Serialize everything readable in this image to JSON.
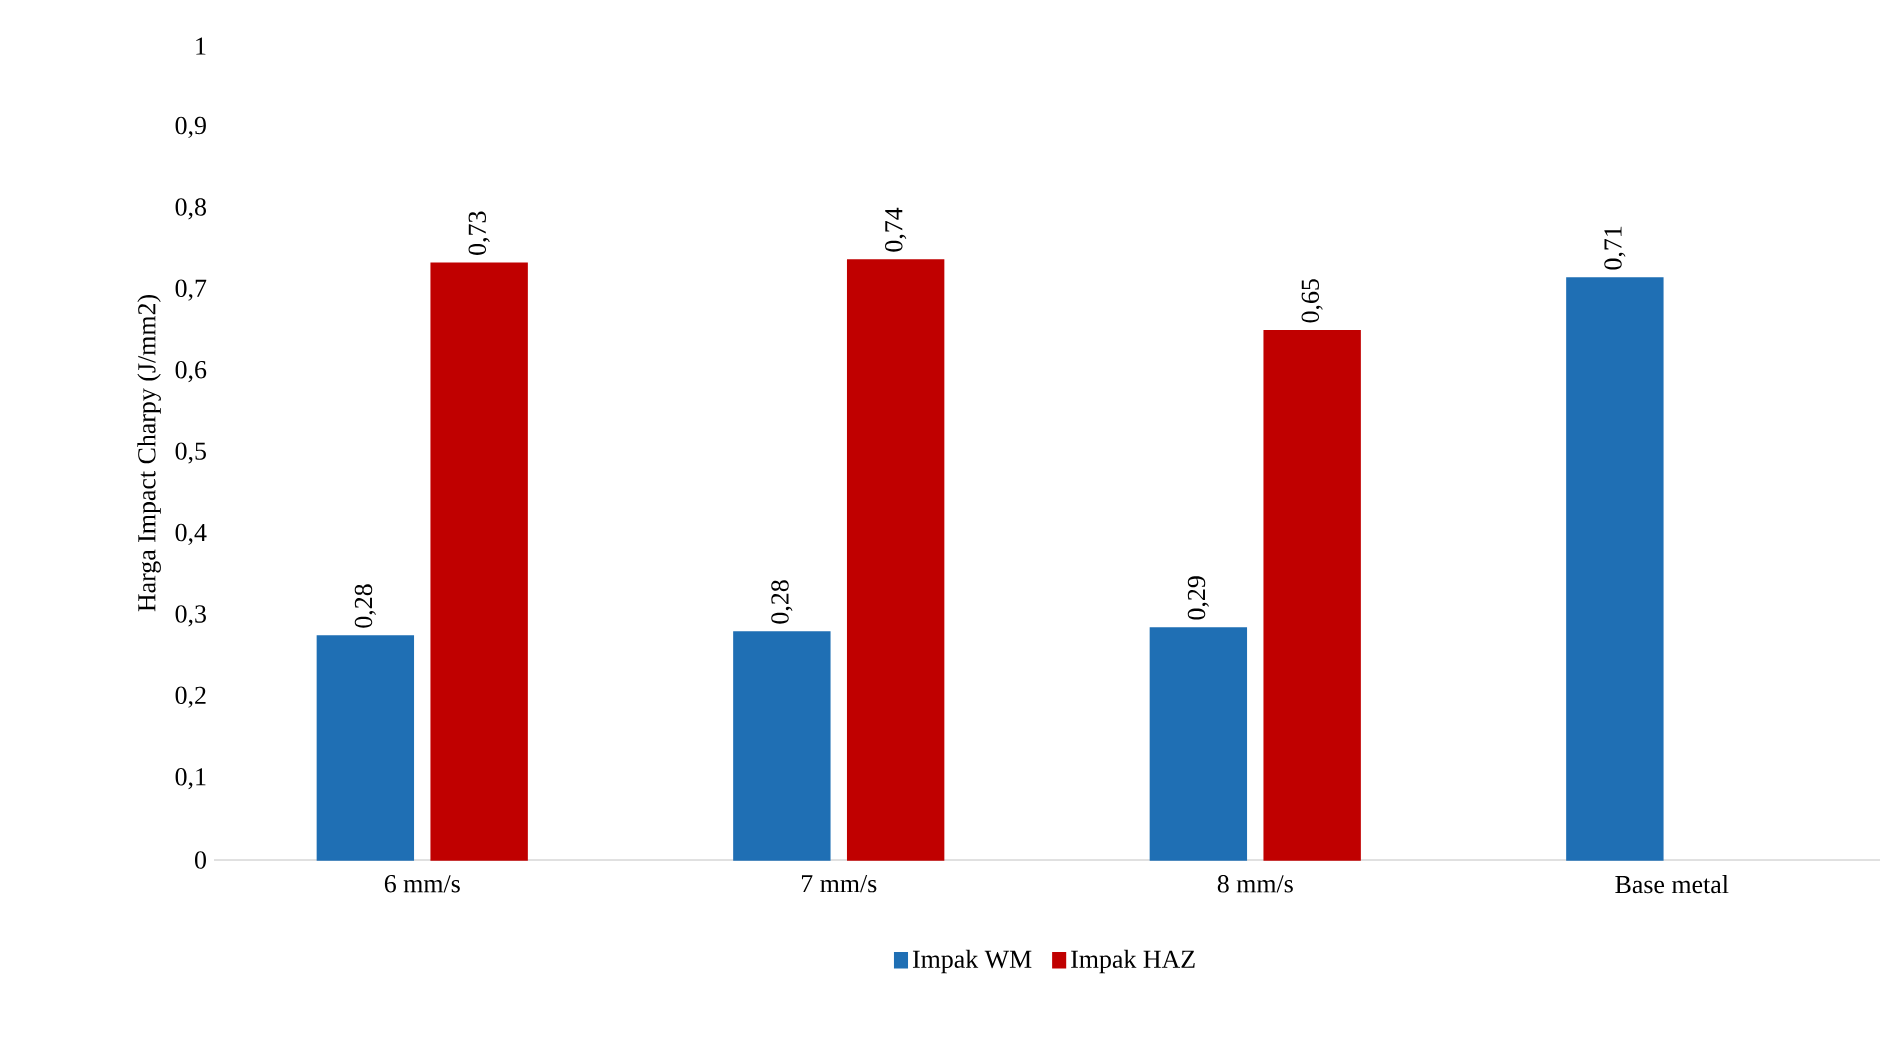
{
  "chart_data": {
    "type": "bar",
    "ylabel": "Harga Impact Charpy (J/mm2)",
    "categories": [
      "6 mm/s",
      "7 mm/s",
      "8 mm/s",
      "Base metal"
    ],
    "series": [
      {
        "name": "Impak WM",
        "color": "#1f6fb4",
        "values": [
          0.275,
          0.28,
          0.285,
          0.715
        ],
        "value_labels": [
          "0,28",
          "0,28",
          "0,29",
          "0,71"
        ]
      },
      {
        "name": "Impak HAZ",
        "color": "#c00000",
        "values": [
          0.733,
          0.737,
          0.65,
          null
        ],
        "value_labels": [
          "0,73",
          "0,74",
          "0,65",
          null
        ]
      }
    ],
    "ylim": [
      0,
      1
    ],
    "yticks": [
      0,
      {
        "value": 0.1,
        "label": "0,1"
      },
      {
        "value": 0.2,
        "label": "0,2"
      },
      {
        "value": 0.3,
        "label": "0,3"
      },
      {
        "value": 0.4,
        "label": "0,4"
      },
      {
        "value": 0.5,
        "label": "0,5"
      },
      {
        "value": 0.6,
        "label": "0,6"
      },
      {
        "value": 0.7,
        "label": "0,7"
      },
      {
        "value": 0.8,
        "label": "0,8"
      },
      {
        "value": 0.9,
        "label": "0,9"
      },
      1
    ],
    "legend": "bottom",
    "grid": false
  }
}
